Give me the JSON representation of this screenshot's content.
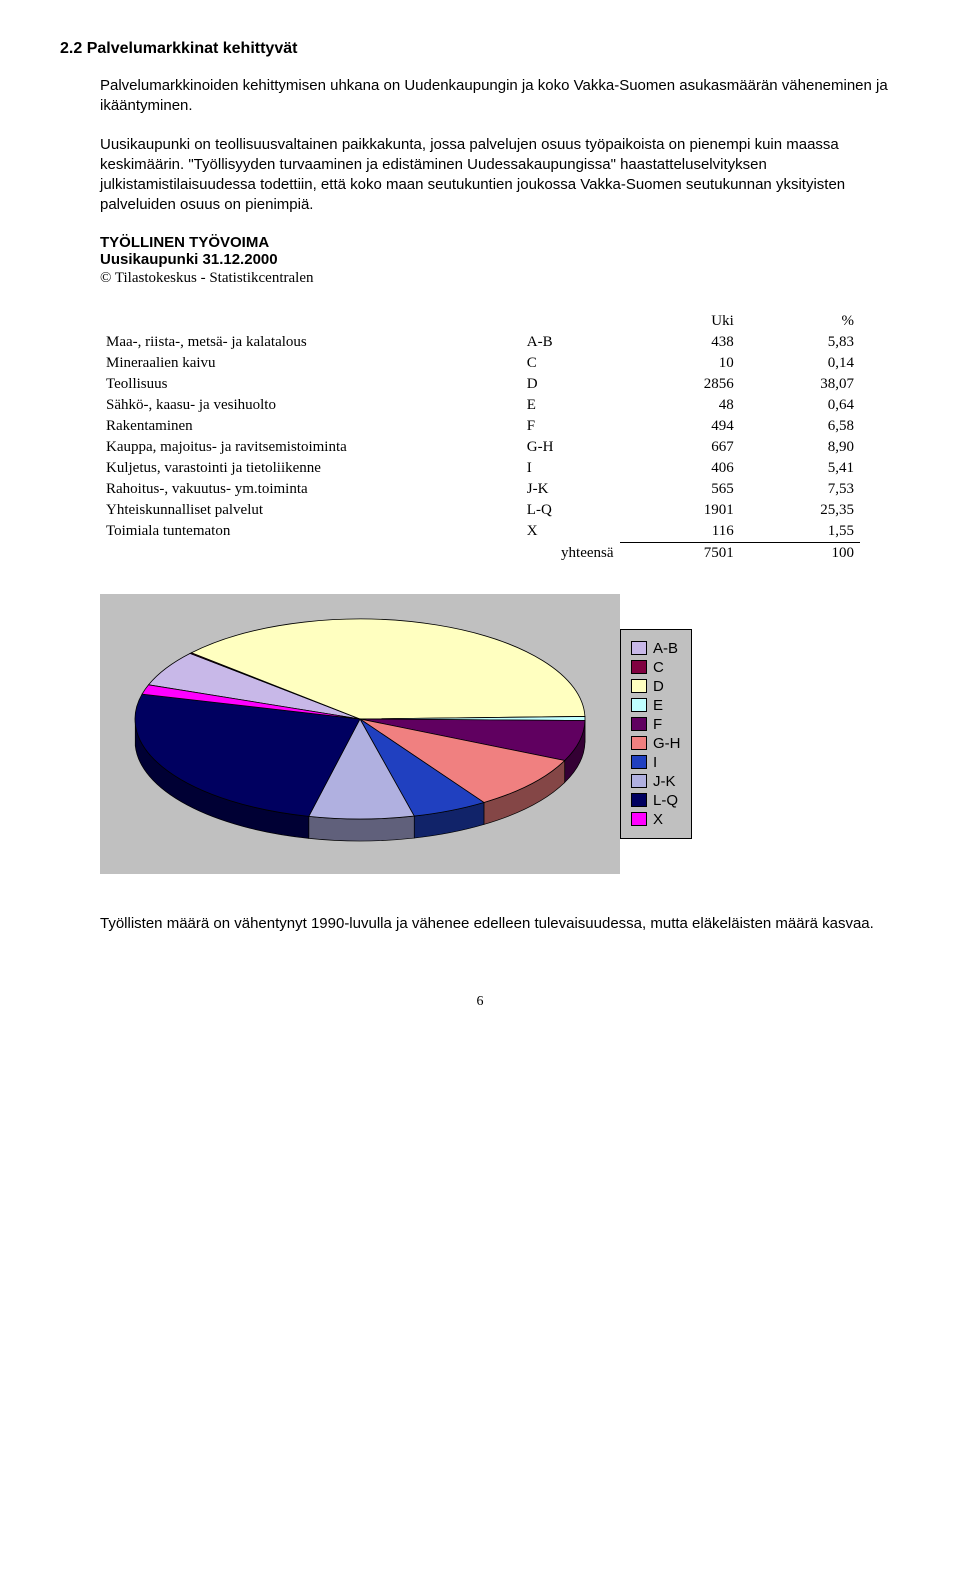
{
  "section_heading": "2.2 Palvelumarkkinat kehittyvät",
  "para1": "Palvelumarkkinoiden kehittymisen uhkana on Uudenkaupungin ja koko Vakka-Suomen asukasmäärän väheneminen ja ikääntyminen.",
  "para2": "Uusikaupunki on teollisuusvaltainen paikkakunta, jossa palvelujen osuus työpaikoista on pienempi kuin maassa keskimäärin. \"Työllisyyden turvaaminen ja edistäminen Uudessakaupungissa\" haastatteluselvityksen julkistamistilaisuudessa todettiin, että koko maan seutukuntien joukossa Vakka-Suomen seutukunnan yksityisten palveluiden osuus on pienimpiä.",
  "subtitle1": "TYÖLLINEN TYÖVOIMA",
  "subtitle2": "Uusikaupunki 31.12.2000",
  "copyright": "© Tilastokeskus - Statistikcentralen",
  "table": {
    "header_uki": "Uki",
    "header_pct": "%",
    "rows": [
      {
        "label": "Maa-, riista-, metsä- ja kalatalous",
        "code": "A-B",
        "uki": "438",
        "pct": "5,83"
      },
      {
        "label": "Mineraalien kaivu",
        "code": "C",
        "uki": "10",
        "pct": "0,14"
      },
      {
        "label": "Teollisuus",
        "code": "D",
        "uki": "2856",
        "pct": "38,07"
      },
      {
        "label": "Sähkö-, kaasu- ja vesihuolto",
        "code": "E",
        "uki": "48",
        "pct": "0,64"
      },
      {
        "label": "Rakentaminen",
        "code": "F",
        "uki": "494",
        "pct": "6,58"
      },
      {
        "label": "Kauppa, majoitus- ja ravitsemistoiminta",
        "code": "G-H",
        "uki": "667",
        "pct": "8,90"
      },
      {
        "label": "Kuljetus, varastointi ja tietoliikenne",
        "code": "I",
        "uki": "406",
        "pct": "5,41"
      },
      {
        "label": "Rahoitus-, vakuutus- ym.toiminta",
        "code": "J-K",
        "uki": "565",
        "pct": "7,53"
      },
      {
        "label": "Yhteiskunnalliset palvelut",
        "code": "L-Q",
        "uki": "1901",
        "pct": "25,35"
      },
      {
        "label": "Toimiala tuntematon",
        "code": "X",
        "uki": "116",
        "pct": "1,55"
      }
    ],
    "total_label": "yhteensä",
    "total_uki": "7501",
    "total_pct": "100"
  },
  "chart": {
    "type": "pie-3d",
    "background": "#c0c0c0",
    "slices": [
      {
        "code": "A-B",
        "value": 5.83,
        "color": "#c8b8e8"
      },
      {
        "code": "C",
        "value": 0.14,
        "color": "#800040"
      },
      {
        "code": "D",
        "value": 38.07,
        "color": "#ffffc0"
      },
      {
        "code": "E",
        "value": 0.64,
        "color": "#c0ffff"
      },
      {
        "code": "F",
        "value": 6.58,
        "color": "#600060"
      },
      {
        "code": "G-H",
        "value": 8.9,
        "color": "#f08080"
      },
      {
        "code": "I",
        "value": 5.41,
        "color": "#2040c0"
      },
      {
        "code": "J-K",
        "value": 7.53,
        "color": "#b0b0e0"
      },
      {
        "code": "L-Q",
        "value": 25.35,
        "color": "#000060"
      },
      {
        "code": "X",
        "value": 1.55,
        "color": "#ff00ff"
      }
    ],
    "edge_color": "#000000",
    "depth": 22
  },
  "footer": "Työllisten määrä on vähentynyt 1990-luvulla ja vähenee edelleen tulevaisuudessa, mutta eläkeläisten määrä kasvaa.",
  "page_number": "6"
}
